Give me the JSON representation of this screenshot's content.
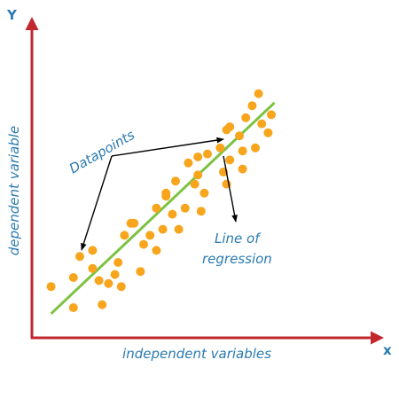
{
  "chart_data": {
    "type": "scatter",
    "title": "",
    "xlabel": "independent variables",
    "ylabel": "dependent variable",
    "x_axis_letter": "x",
    "y_axis_letter": "Y",
    "xlim": [
      0,
      100
    ],
    "ylim": [
      0,
      100
    ],
    "grid": false,
    "points": [
      {
        "x": 6,
        "y": 17
      },
      {
        "x": 13,
        "y": 10
      },
      {
        "x": 13,
        "y": 20
      },
      {
        "x": 15,
        "y": 27
      },
      {
        "x": 19,
        "y": 29
      },
      {
        "x": 19,
        "y": 23
      },
      {
        "x": 21,
        "y": 19
      },
      {
        "x": 22,
        "y": 11
      },
      {
        "x": 24,
        "y": 18
      },
      {
        "x": 26,
        "y": 21
      },
      {
        "x": 27,
        "y": 25
      },
      {
        "x": 29,
        "y": 34
      },
      {
        "x": 31,
        "y": 38
      },
      {
        "x": 28,
        "y": 17
      },
      {
        "x": 32,
        "y": 38
      },
      {
        "x": 34,
        "y": 22
      },
      {
        "x": 35,
        "y": 31
      },
      {
        "x": 37,
        "y": 34
      },
      {
        "x": 39,
        "y": 29
      },
      {
        "x": 39,
        "y": 43
      },
      {
        "x": 41,
        "y": 36
      },
      {
        "x": 42,
        "y": 48
      },
      {
        "x": 42,
        "y": 47
      },
      {
        "x": 44,
        "y": 41
      },
      {
        "x": 45,
        "y": 52
      },
      {
        "x": 46,
        "y": 36
      },
      {
        "x": 48,
        "y": 43
      },
      {
        "x": 49,
        "y": 58
      },
      {
        "x": 51,
        "y": 51
      },
      {
        "x": 52,
        "y": 60
      },
      {
        "x": 52,
        "y": 54
      },
      {
        "x": 53,
        "y": 42
      },
      {
        "x": 54,
        "y": 48
      },
      {
        "x": 55,
        "y": 61
      },
      {
        "x": 59,
        "y": 63
      },
      {
        "x": 60,
        "y": 55
      },
      {
        "x": 61,
        "y": 51
      },
      {
        "x": 62,
        "y": 59
      },
      {
        "x": 61,
        "y": 69
      },
      {
        "x": 62,
        "y": 70
      },
      {
        "x": 65,
        "y": 67
      },
      {
        "x": 66,
        "y": 62
      },
      {
        "x": 66,
        "y": 56
      },
      {
        "x": 67,
        "y": 73
      },
      {
        "x": 69,
        "y": 77
      },
      {
        "x": 70,
        "y": 63
      },
      {
        "x": 71,
        "y": 81
      },
      {
        "x": 72,
        "y": 71
      },
      {
        "x": 74,
        "y": 68
      },
      {
        "x": 75,
        "y": 74
      }
    ],
    "regression_line": [
      {
        "x": 6,
        "y": 8
      },
      {
        "x": 76,
        "y": 78
      }
    ],
    "annotations": [
      {
        "text": "Datapoints",
        "points_to": [
          "datapoint",
          "datapoint"
        ]
      },
      {
        "text": "Line of regression",
        "lines": [
          "Line of",
          "regression"
        ]
      }
    ]
  },
  "colors": {
    "axis": "#c1272d",
    "label": "#2a7ab0",
    "point": "#f7a51c",
    "line": "#7dc242",
    "arrow": "#000000"
  }
}
